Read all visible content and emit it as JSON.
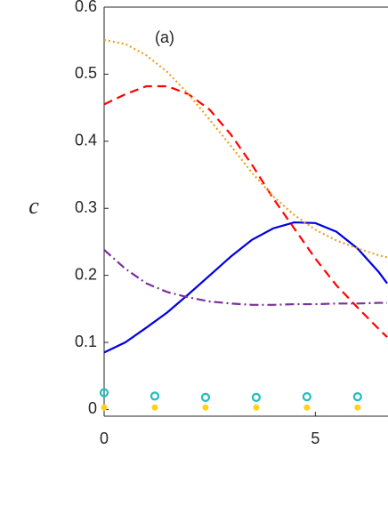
{
  "chart_data": {
    "type": "line",
    "annotation": "(a)",
    "y_label": "c",
    "x": [
      0,
      0.5,
      1,
      1.5,
      2,
      2.5,
      3,
      3.5,
      4,
      4.5,
      5,
      5.5,
      6,
      6.5,
      6.7
    ],
    "series": [
      {
        "color": "#0000e6",
        "style": "solid",
        "values": [
          0.085,
          0.1,
          0.122,
          0.145,
          0.172,
          0.2,
          0.228,
          0.253,
          0.27,
          0.279,
          0.278,
          0.265,
          0.24,
          0.205,
          0.188
        ]
      },
      {
        "color": "#ff0000",
        "style": "dashed",
        "values": [
          0.455,
          0.47,
          0.482,
          0.482,
          0.47,
          0.447,
          0.41,
          0.365,
          0.315,
          0.27,
          0.225,
          0.185,
          0.152,
          0.12,
          0.108
        ]
      },
      {
        "color": "#eba21f",
        "style": "dotted",
        "values": [
          0.551,
          0.545,
          0.528,
          0.503,
          0.47,
          0.432,
          0.393,
          0.353,
          0.318,
          0.29,
          0.268,
          0.252,
          0.24,
          0.23,
          0.227
        ]
      },
      {
        "color": "#7b2f9a",
        "style": "dashdot",
        "values": [
          0.238,
          0.21,
          0.188,
          0.175,
          0.167,
          0.161,
          0.158,
          0.156,
          0.156,
          0.157,
          0.157,
          0.158,
          0.158,
          0.159,
          0.159
        ]
      }
    ],
    "points": [
      {
        "color": "#1fbfbf",
        "marker": "open-circle",
        "x": [
          0,
          1.2,
          2.4,
          3.6,
          4.8,
          6.0
        ],
        "values": [
          0.025,
          0.02,
          0.018,
          0.018,
          0.019,
          0.019
        ]
      },
      {
        "color": "#ffd11a",
        "marker": "dot",
        "x": [
          0,
          1.2,
          2.4,
          3.6,
          4.8,
          6.0
        ],
        "values": [
          0.003,
          0.003,
          0.003,
          0.003,
          0.003,
          0.003
        ]
      }
    ],
    "xlim": [
      0,
      6.72
    ],
    "ylim": [
      -0.01,
      0.6
    ],
    "xticks": [
      0,
      5
    ],
    "yticks": [
      0,
      0.1,
      0.2,
      0.3,
      0.4,
      0.5,
      0.6
    ]
  }
}
